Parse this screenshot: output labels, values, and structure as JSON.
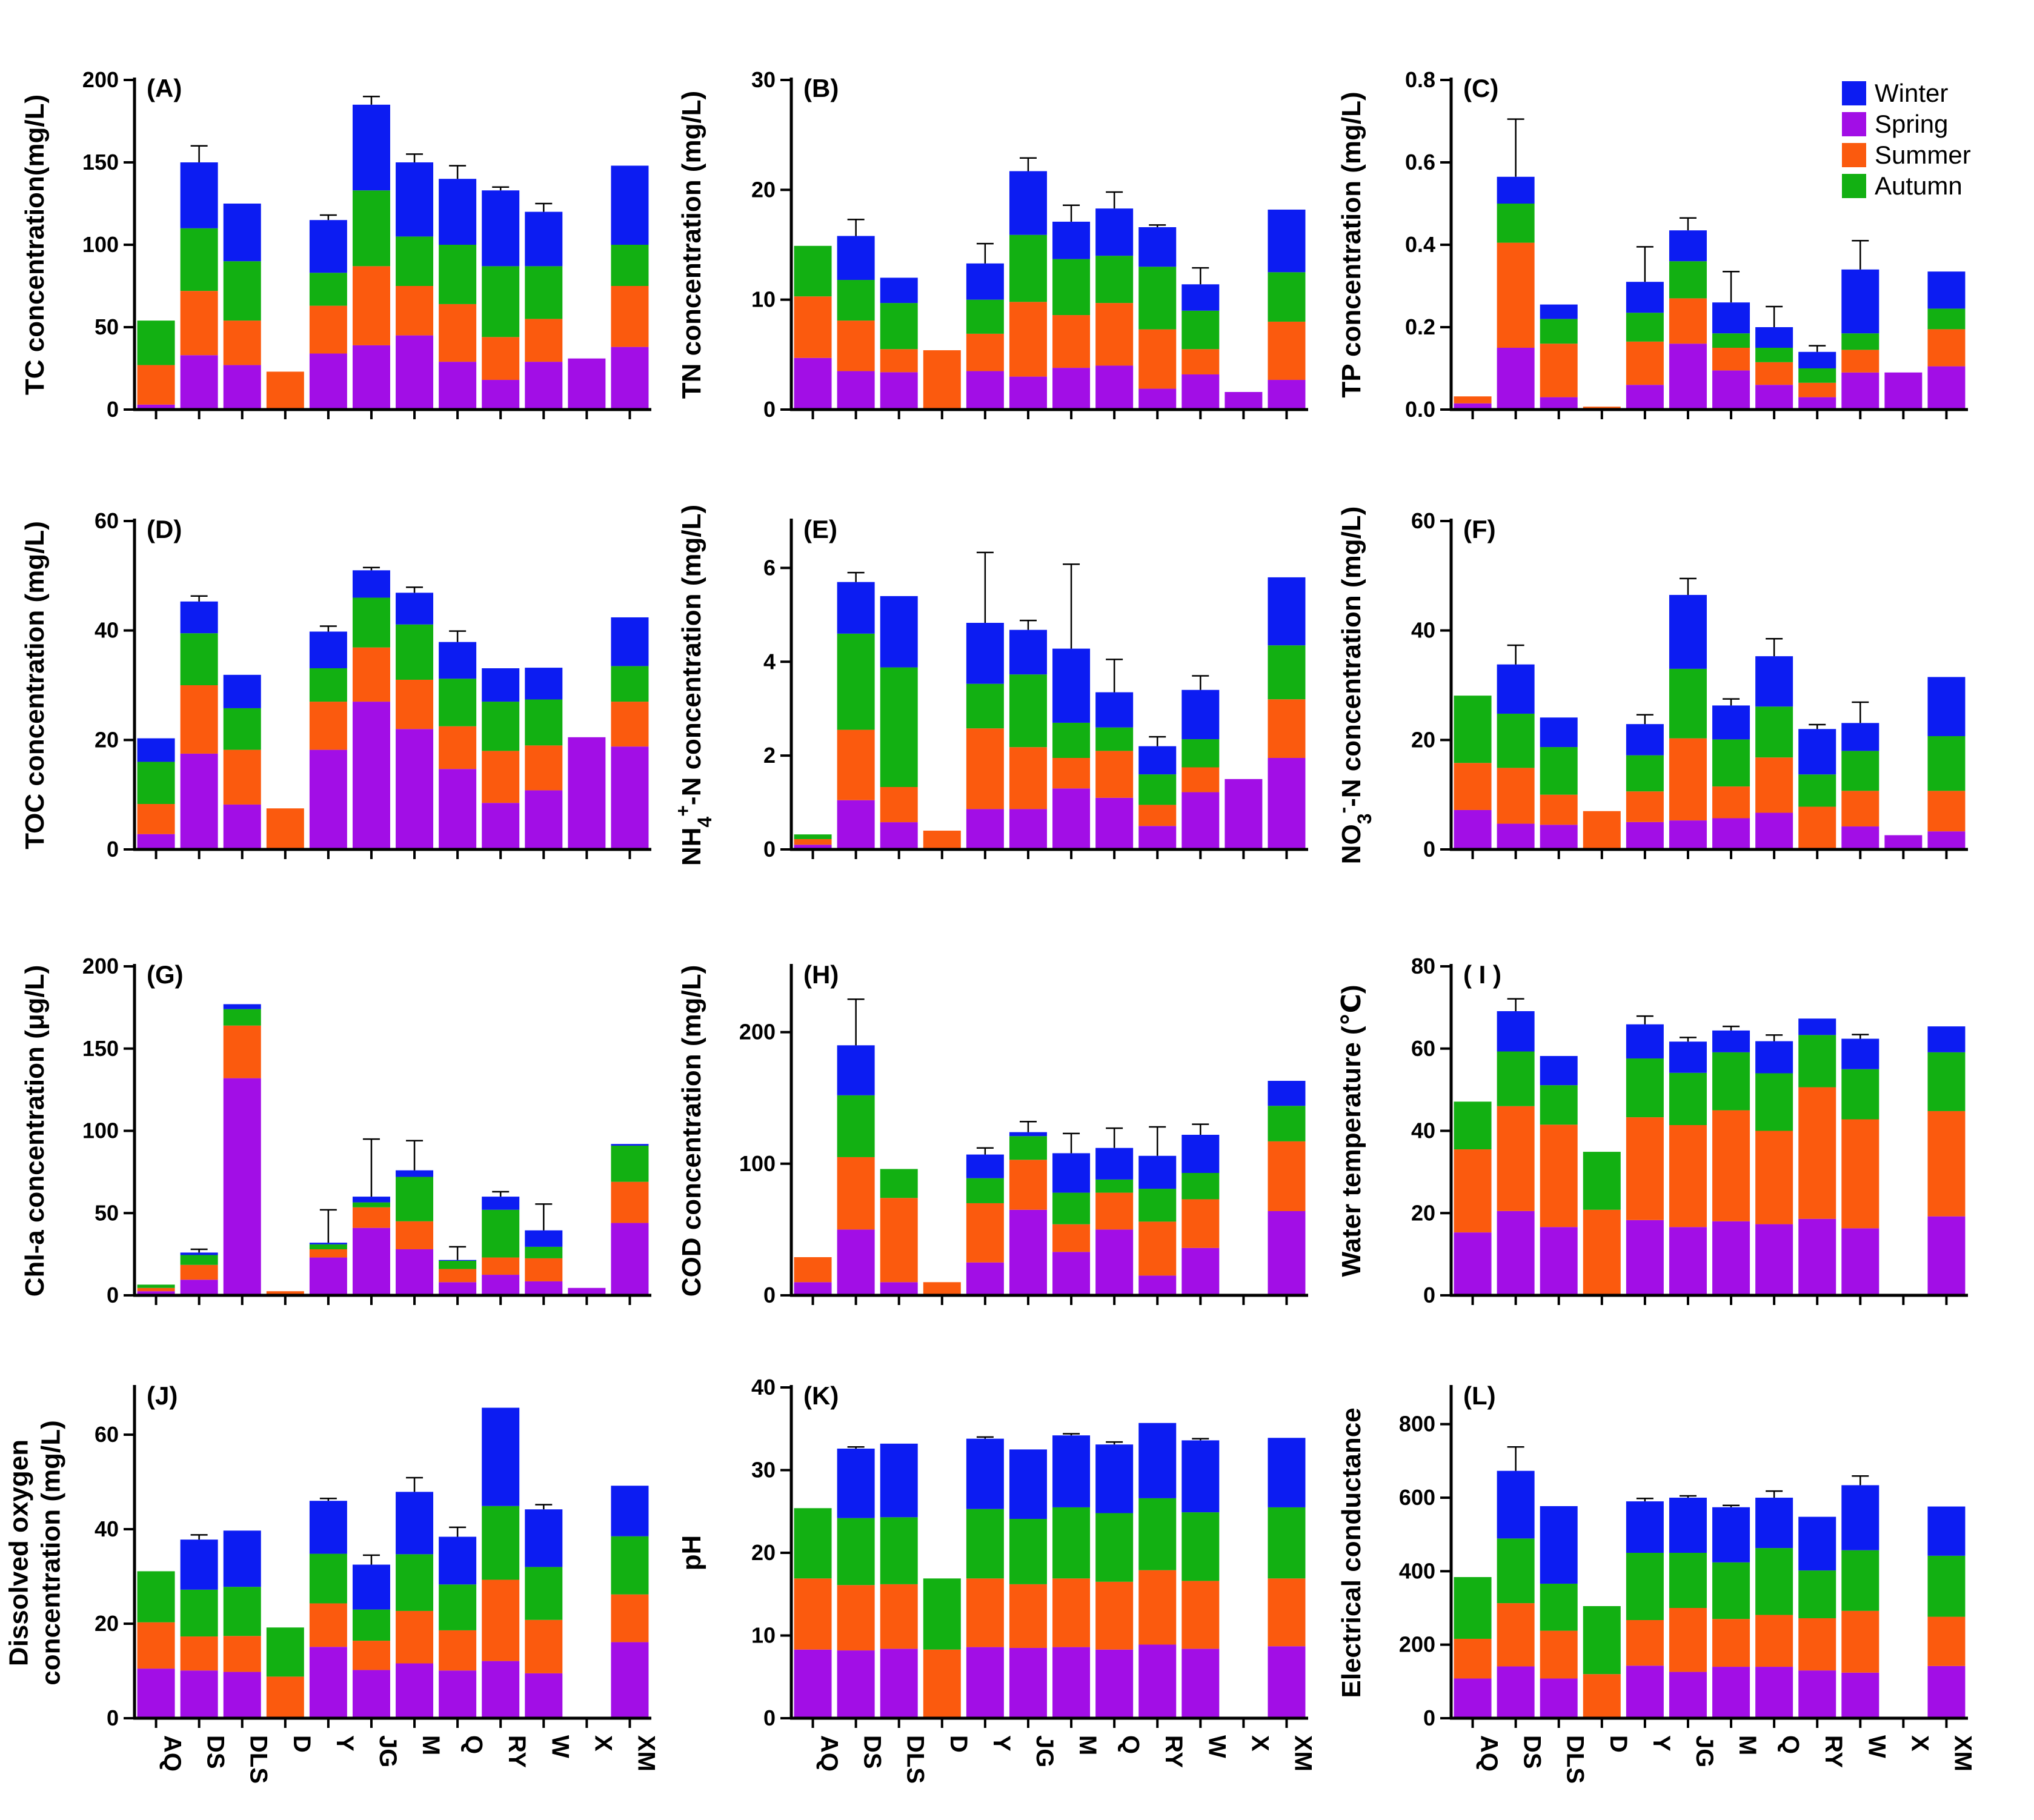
{
  "colors": {
    "Winter": "#0c1cf2",
    "Spring": "#a20ee6",
    "Summer": "#fb5a0e",
    "Autumn": "#12b012"
  },
  "legend": [
    "Winter",
    "Spring",
    "Summer",
    "Autumn"
  ],
  "categories": [
    "AQ",
    "DS",
    "DLS",
    "D",
    "Y",
    "JG",
    "M",
    "Q",
    "RY",
    "W",
    "X",
    "XM"
  ],
  "chart_data": [
    {
      "id": "A",
      "type": "bar",
      "stacked": true,
      "title": "(A)",
      "ylabel": "TC concentration(mg/L)",
      "ylim": [
        0,
        200
      ],
      "yticks": [
        0,
        50,
        100,
        150,
        200
      ],
      "series": [
        {
          "name": "Spring",
          "values": [
            3,
            33,
            27,
            0,
            34,
            39,
            45,
            29,
            18,
            29,
            31,
            38
          ]
        },
        {
          "name": "Summer",
          "values": [
            24,
            39,
            27,
            23,
            29,
            48,
            30,
            35,
            26,
            26,
            0,
            37
          ]
        },
        {
          "name": "Autumn",
          "values": [
            27,
            38,
            36,
            0,
            20,
            46,
            30,
            36,
            43,
            32,
            0,
            25
          ]
        },
        {
          "name": "Winter",
          "values": [
            0,
            40,
            35,
            0,
            32,
            52,
            45,
            40,
            46,
            33,
            0,
            48
          ]
        }
      ],
      "errors": [
        0,
        10,
        0,
        0,
        3,
        5,
        5,
        8,
        2,
        5,
        0,
        0
      ]
    },
    {
      "id": "B",
      "type": "bar",
      "stacked": true,
      "title": "(B)",
      "ylabel": "TN concentration (mg/L)",
      "ylim": [
        0,
        30
      ],
      "yticks": [
        0,
        10,
        20,
        30
      ],
      "series": [
        {
          "name": "Spring",
          "values": [
            4.7,
            3.5,
            3.4,
            0,
            3.5,
            3.0,
            3.8,
            4.0,
            1.9,
            3.2,
            1.6,
            2.7
          ]
        },
        {
          "name": "Summer",
          "values": [
            5.6,
            4.6,
            2.1,
            5.4,
            3.4,
            6.8,
            4.8,
            5.7,
            5.4,
            2.3,
            0,
            5.3
          ]
        },
        {
          "name": "Autumn",
          "values": [
            4.6,
            3.7,
            4.2,
            0,
            3.1,
            6.1,
            5.1,
            4.3,
            5.7,
            3.5,
            0,
            4.5
          ]
        },
        {
          "name": "Winter",
          "values": [
            0,
            4.0,
            2.3,
            0,
            3.3,
            5.8,
            3.4,
            4.3,
            3.6,
            2.4,
            0,
            5.7
          ]
        }
      ],
      "errors": [
        0,
        1.5,
        0,
        0,
        1.8,
        1.2,
        1.5,
        1.5,
        0.2,
        1.5,
        0,
        0
      ]
    },
    {
      "id": "C",
      "type": "bar",
      "stacked": true,
      "title": "(C)",
      "ylabel": "TP concentration (mg/L)",
      "ylim": [
        0,
        0.8
      ],
      "yticks": [
        0.0,
        0.2,
        0.4,
        0.6,
        0.8
      ],
      "legend_position": "top-right",
      "series": [
        {
          "name": "Spring",
          "values": [
            0.015,
            0.15,
            0.03,
            0,
            0.06,
            0.16,
            0.095,
            0.06,
            0.03,
            0.09,
            0.09,
            0.105
          ]
        },
        {
          "name": "Summer",
          "values": [
            0.017,
            0.255,
            0.13,
            0.007,
            0.105,
            0.11,
            0.055,
            0.055,
            0.035,
            0.055,
            0,
            0.09
          ]
        },
        {
          "name": "Autumn",
          "values": [
            0,
            0.095,
            0.06,
            0,
            0.07,
            0.09,
            0.035,
            0.035,
            0.035,
            0.04,
            0,
            0.05
          ]
        },
        {
          "name": "Winter",
          "values": [
            0,
            0.065,
            0.035,
            0,
            0.075,
            0.075,
            0.075,
            0.05,
            0.04,
            0.155,
            0,
            0.09
          ]
        }
      ],
      "errors": [
        0,
        0.14,
        0,
        0,
        0.085,
        0.03,
        0.075,
        0.05,
        0.015,
        0.07,
        0,
        0
      ]
    },
    {
      "id": "D",
      "type": "bar",
      "stacked": true,
      "title": "(D)",
      "ylabel": "TOC concentration (mg/L)",
      "ylim": [
        0,
        60
      ],
      "yticks": [
        0,
        20,
        40,
        60
      ],
      "series": [
        {
          "name": "Spring",
          "values": [
            2.8,
            17.5,
            8.2,
            0,
            18.2,
            27,
            22,
            14.7,
            8.5,
            10.8,
            20.5,
            18.8
          ]
        },
        {
          "name": "Summer",
          "values": [
            5.5,
            12.5,
            10,
            7.5,
            8.8,
            9.9,
            9,
            7.8,
            9.5,
            8.2,
            0,
            8.2
          ]
        },
        {
          "name": "Autumn",
          "values": [
            7.7,
            9.5,
            7.6,
            0,
            6.1,
            9.1,
            10.1,
            8.7,
            9,
            8.4,
            0,
            6.5
          ]
        },
        {
          "name": "Winter",
          "values": [
            4.3,
            5.8,
            6.1,
            0,
            6.7,
            5,
            5.8,
            6.7,
            6.1,
            5.8,
            0,
            8.9
          ]
        }
      ],
      "errors": [
        0,
        1,
        0,
        0,
        1,
        0.5,
        1,
        2,
        0,
        0,
        0,
        0
      ]
    },
    {
      "id": "E",
      "type": "bar",
      "stacked": true,
      "title": "(E)",
      "ylabel": "NH4+-N concentration (mg/L)",
      "ylim": [
        0,
        7
      ],
      "yticks": [
        0,
        2,
        4,
        6
      ],
      "series": [
        {
          "name": "Spring",
          "values": [
            0.1,
            1.05,
            0.58,
            0,
            0.86,
            0.86,
            1.3,
            1.1,
            0.5,
            1.22,
            1.5,
            1.95
          ]
        },
        {
          "name": "Summer",
          "values": [
            0.12,
            1.5,
            0.75,
            0.4,
            1.72,
            1.32,
            0.65,
            1.0,
            0.45,
            0.53,
            0,
            1.25
          ]
        },
        {
          "name": "Autumn",
          "values": [
            0.1,
            2.05,
            2.55,
            0,
            0.95,
            1.55,
            0.75,
            0.5,
            0.65,
            0.6,
            0,
            1.15
          ]
        },
        {
          "name": "Winter",
          "values": [
            0,
            1.1,
            1.52,
            0,
            1.3,
            0.95,
            1.58,
            0.75,
            0.6,
            1.05,
            0,
            1.45
          ]
        }
      ],
      "errors": [
        0,
        0.2,
        0,
        0,
        1.5,
        0.2,
        1.8,
        0.7,
        0.2,
        0.3,
        0,
        0
      ]
    },
    {
      "id": "F",
      "type": "bar",
      "stacked": true,
      "title": "(F)",
      "ylabel": "NO3--N concentration (mg/L)",
      "ylim": [
        0,
        60
      ],
      "yticks": [
        0,
        20,
        40,
        60
      ],
      "series": [
        {
          "name": "Spring",
          "values": [
            7.2,
            4.7,
            4.5,
            0,
            5,
            5.3,
            5.7,
            6.7,
            0,
            4.2,
            2.6,
            3.3
          ]
        },
        {
          "name": "Summer",
          "values": [
            8.6,
            10.2,
            5.5,
            7,
            5.6,
            15,
            5.8,
            10.1,
            7.8,
            6.5,
            0,
            7.4
          ]
        },
        {
          "name": "Autumn",
          "values": [
            12.3,
            9.9,
            8.7,
            0,
            6.6,
            12.7,
            8.6,
            9.3,
            5.9,
            7.3,
            0,
            10
          ]
        },
        {
          "name": "Winter",
          "values": [
            0,
            9,
            5.4,
            0,
            5.7,
            13.5,
            6.2,
            9.2,
            8.3,
            5.1,
            0,
            10.8
          ]
        }
      ],
      "errors": [
        0,
        3.5,
        0,
        0,
        1.7,
        3,
        1.2,
        3.2,
        0.8,
        3.8,
        0,
        0
      ]
    },
    {
      "id": "G",
      "type": "bar",
      "stacked": true,
      "title": "(G)",
      "ylabel": "Chl-a concentration (μg/L)",
      "ylim": [
        0,
        200
      ],
      "yticks": [
        0,
        50,
        100,
        150,
        200
      ],
      "series": [
        {
          "name": "Spring",
          "values": [
            2.5,
            9.5,
            132,
            0,
            23,
            41,
            28,
            8,
            12.5,
            8.5,
            4.5,
            44
          ]
        },
        {
          "name": "Summer",
          "values": [
            2,
            9,
            32,
            2.5,
            5,
            12.5,
            17,
            8,
            10.5,
            14,
            0,
            25
          ]
        },
        {
          "name": "Autumn",
          "values": [
            2,
            6,
            10,
            0,
            3,
            3,
            27,
            5,
            29,
            7,
            0,
            22
          ]
        },
        {
          "name": "Winter",
          "values": [
            0,
            1.5,
            3,
            0,
            1,
            3.5,
            4,
            0.5,
            8,
            10,
            0,
            1
          ]
        }
      ],
      "errors": [
        0,
        2,
        0,
        0,
        20,
        35,
        18,
        8,
        3,
        16,
        0,
        0
      ]
    },
    {
      "id": "H",
      "type": "bar",
      "stacked": true,
      "title": "(H)",
      "ylabel": "COD concentration (mg/L)",
      "ylim": [
        0,
        250
      ],
      "yticks": [
        0,
        100,
        200
      ],
      "series": [
        {
          "name": "Spring",
          "values": [
            10,
            50,
            10,
            0,
            25,
            65,
            33,
            50,
            15,
            36,
            0,
            64
          ]
        },
        {
          "name": "Summer",
          "values": [
            19,
            55,
            64,
            10,
            45,
            38,
            21,
            28,
            41,
            37,
            0,
            53
          ]
        },
        {
          "name": "Autumn",
          "values": [
            0,
            47,
            22,
            0,
            19,
            18,
            24,
            10,
            25,
            20,
            0,
            27
          ]
        },
        {
          "name": "Winter",
          "values": [
            0,
            38,
            0,
            0,
            18,
            3,
            30,
            24,
            25,
            29,
            0,
            19
          ]
        }
      ],
      "errors": [
        0,
        35,
        0,
        0,
        5,
        8,
        15,
        15,
        22,
        8,
        0,
        0
      ]
    },
    {
      "id": "I",
      "type": "bar",
      "stacked": true,
      "title": "( I )",
      "ylabel": "Water temperature (℃)",
      "ylim": [
        0,
        80
      ],
      "yticks": [
        0,
        20,
        40,
        60,
        80
      ],
      "series": [
        {
          "name": "Spring",
          "values": [
            15.3,
            20.5,
            16.6,
            0,
            18.3,
            16.6,
            18,
            17.3,
            18.6,
            16.3,
            0,
            19.2
          ]
        },
        {
          "name": "Summer",
          "values": [
            20.2,
            25.5,
            24.9,
            20.8,
            25,
            24.8,
            27,
            22.7,
            32,
            26.5,
            0,
            25.6
          ]
        },
        {
          "name": "Autumn",
          "values": [
            11.6,
            13.3,
            9.6,
            14.1,
            14.3,
            12.7,
            14.1,
            14,
            12.7,
            12.2,
            0,
            14.3
          ]
        },
        {
          "name": "Winter",
          "values": [
            0,
            9.8,
            7.1,
            0,
            8.3,
            7.6,
            5.3,
            7.8,
            4,
            7.4,
            0,
            6.3
          ]
        }
      ],
      "errors": [
        0,
        3,
        0,
        0,
        2,
        1,
        1,
        1.5,
        0,
        1,
        0,
        0
      ]
    },
    {
      "id": "J",
      "type": "bar",
      "stacked": true,
      "title": "(J)",
      "ylabel": [
        "Dissolved oxygen",
        "concentration (mg/L)"
      ],
      "ylim": [
        0,
        70
      ],
      "yticks": [
        0,
        20,
        40,
        60
      ],
      "series": [
        {
          "name": "Spring",
          "values": [
            10.5,
            10.1,
            9.8,
            0,
            15.1,
            10.2,
            11.6,
            10.1,
            12.1,
            9.5,
            0,
            16.1
          ]
        },
        {
          "name": "Summer",
          "values": [
            9.8,
            7.2,
            7.6,
            8.8,
            9.2,
            6.2,
            11.1,
            8.5,
            17.2,
            11.3,
            0,
            10.1
          ]
        },
        {
          "name": "Autumn",
          "values": [
            10.8,
            9.9,
            10.4,
            10.4,
            10.5,
            6.6,
            12,
            9.7,
            15.6,
            11.2,
            0,
            12.3
          ]
        },
        {
          "name": "Winter",
          "values": [
            0,
            10.6,
            11.9,
            0,
            11.2,
            9.5,
            13.2,
            10.1,
            20.8,
            12.2,
            0,
            10.7
          ]
        }
      ],
      "errors": [
        0,
        1,
        0,
        0,
        0.5,
        2,
        3,
        2,
        0,
        1,
        0,
        0
      ]
    },
    {
      "id": "K",
      "type": "bar",
      "stacked": true,
      "title": "(K)",
      "ylabel": "pH",
      "ylim": [
        0,
        40
      ],
      "yticks": [
        0,
        10,
        20,
        30,
        40
      ],
      "series": [
        {
          "name": "Spring",
          "values": [
            8.3,
            8.2,
            8.4,
            0,
            8.6,
            8.5,
            8.6,
            8.3,
            8.9,
            8.4,
            0,
            8.7
          ]
        },
        {
          "name": "Summer",
          "values": [
            8.6,
            7.9,
            7.8,
            8.3,
            8.3,
            7.7,
            8.3,
            8.2,
            9,
            8.2,
            0,
            8.2
          ]
        },
        {
          "name": "Autumn",
          "values": [
            8.5,
            8.1,
            8.1,
            8.6,
            8.4,
            7.9,
            8.6,
            8.3,
            8.7,
            8.3,
            0,
            8.6
          ]
        },
        {
          "name": "Winter",
          "values": [
            0,
            8.4,
            8.9,
            0,
            8.5,
            8.4,
            8.7,
            8.3,
            9.1,
            8.7,
            0,
            8.4
          ]
        }
      ],
      "errors": [
        0,
        0.2,
        0,
        0,
        0.2,
        0,
        0.2,
        0.3,
        0,
        0.2,
        0,
        0
      ]
    },
    {
      "id": "L",
      "type": "bar",
      "stacked": true,
      "title": "(L)",
      "ylabel": "Electrical conductance",
      "ylim": [
        0,
        900
      ],
      "yticks": [
        0,
        200,
        400,
        600,
        800
      ],
      "series": [
        {
          "name": "Spring",
          "values": [
            108,
            141,
            108,
            0,
            143,
            126,
            140,
            140,
            130,
            124,
            0,
            142
          ]
        },
        {
          "name": "Summer",
          "values": [
            108,
            172,
            130,
            120,
            124,
            174,
            130,
            141,
            142,
            168,
            0,
            134
          ]
        },
        {
          "name": "Autumn",
          "values": [
            168,
            176,
            128,
            185,
            183,
            150,
            154,
            182,
            130,
            165,
            0,
            166
          ]
        },
        {
          "name": "Winter",
          "values": [
            0,
            184,
            211,
            0,
            140,
            150,
            150,
            137,
            146,
            177,
            0,
            134
          ]
        }
      ],
      "errors": [
        0,
        65,
        0,
        0,
        8,
        5,
        5,
        18,
        0,
        25,
        0,
        0
      ]
    }
  ]
}
